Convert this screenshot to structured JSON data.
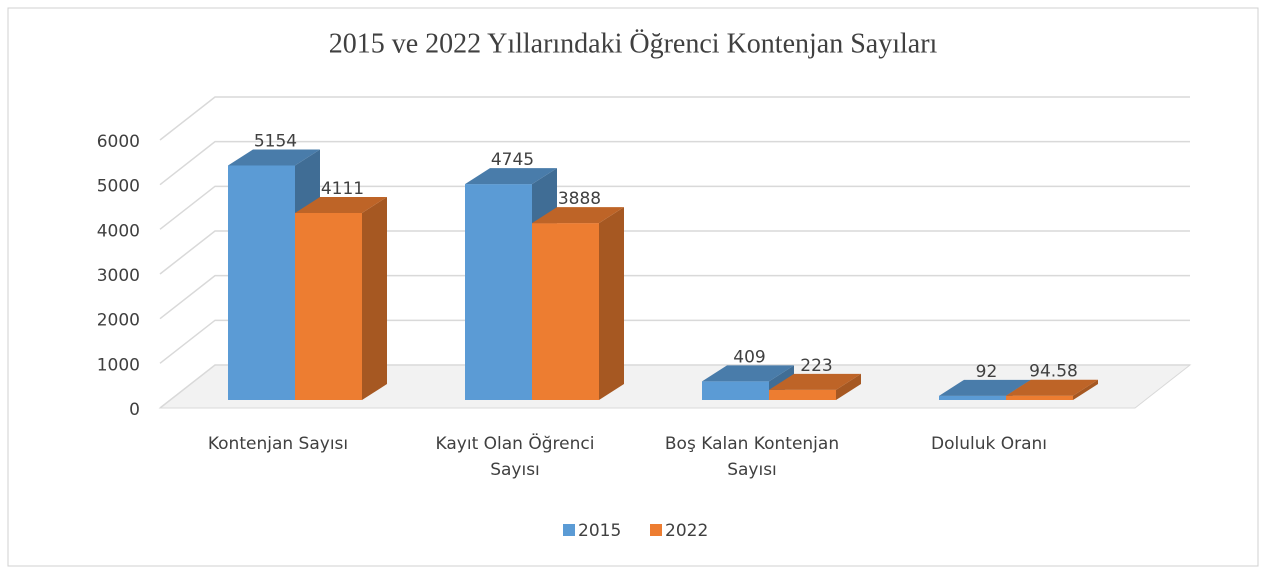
{
  "chart_data": {
    "type": "bar3d",
    "title": "2015 ve 2022 Yıllarındaki Öğrenci Kontenjan Sayıları",
    "categories": [
      "Kontenjan Sayısı",
      "Kayıt Olan Öğrenci Sayısı",
      "Boş Kalan Kontenjan Sayısı",
      "Doluluk Oranı"
    ],
    "series": [
      {
        "name": "2015",
        "color": "#5b9bd5",
        "values": [
          5154,
          4745,
          409,
          92
        ]
      },
      {
        "name": "2022",
        "color": "#ed7d31",
        "values": [
          4111,
          3888,
          223,
          94.58
        ]
      }
    ],
    "ylim": [
      0,
      6000
    ],
    "yticks": [
      0,
      1000,
      2000,
      3000,
      4000,
      5000,
      6000
    ],
    "grid": true,
    "legend": "bottom"
  }
}
